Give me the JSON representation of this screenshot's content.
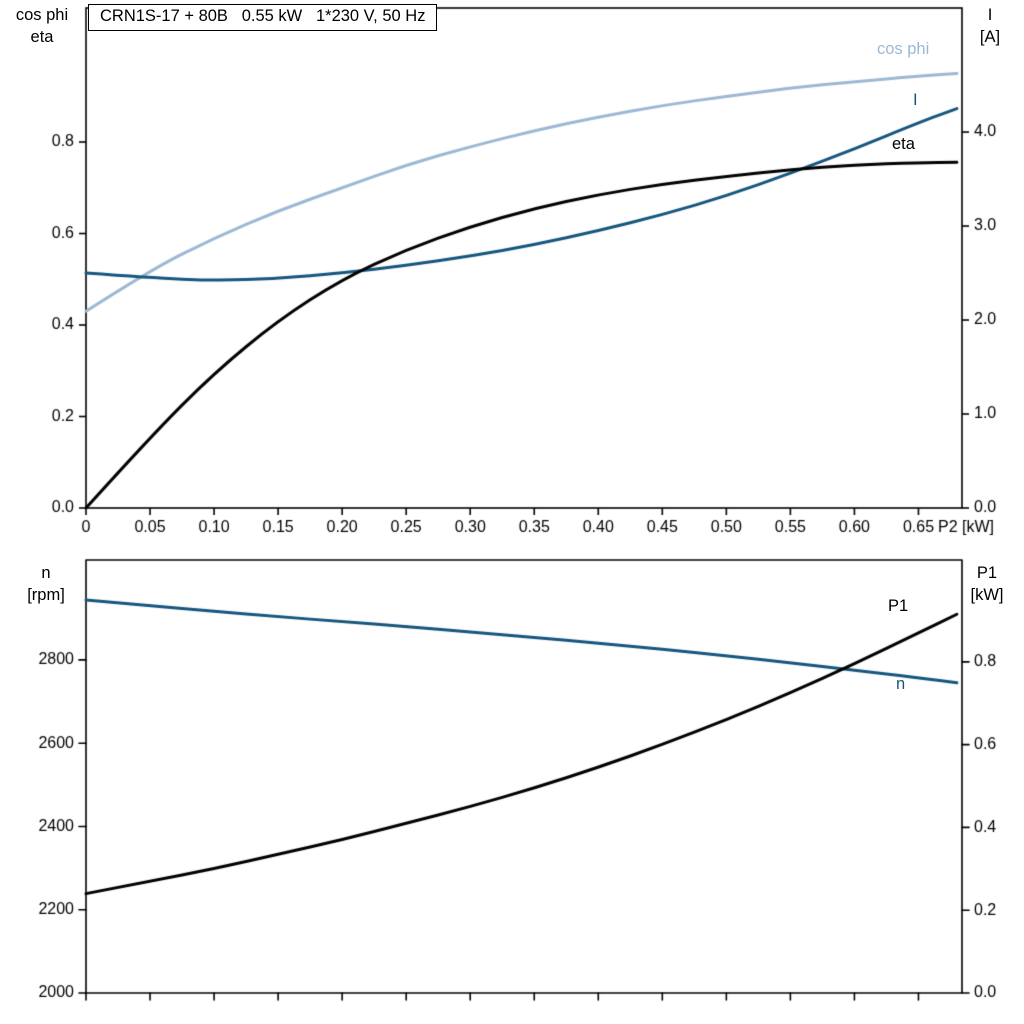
{
  "title_box": "CRN1S-17 + 80B   0.55 kW   1*230 V, 50 Hz",
  "axes_titles": {
    "top_left": [
      "cos phi",
      "eta"
    ],
    "top_right": [
      "I",
      "[A]"
    ],
    "bottom_left": [
      "n",
      "[rpm]"
    ],
    "bottom_right": [
      "P1",
      "[kW]"
    ],
    "x_end": "P2 [kW]"
  },
  "colors": {
    "dark_blue": "#15567d",
    "light_blue": "#9cb8d4",
    "black": "#000000"
  },
  "chart_data": [
    {
      "type": "line",
      "title": "CRN1S-17 + 80B   0.55 kW   1*230 V, 50 Hz",
      "xlabel": "P2 [kW]",
      "x": [
        0,
        0.05,
        0.1,
        0.15,
        0.2,
        0.25,
        0.3,
        0.35,
        0.4,
        0.45,
        0.5,
        0.55,
        0.6,
        0.65,
        0.68
      ],
      "xlim": [
        0,
        0.684
      ],
      "x_ticks": [
        0,
        0.05,
        0.1,
        0.15,
        0.2,
        0.25,
        0.3,
        0.35,
        0.4,
        0.45,
        0.5,
        0.55,
        0.6,
        0.65
      ],
      "x_tick_labels": [
        "0",
        "0.05",
        "0.10",
        "0.15",
        "0.20",
        "0.25",
        "0.30",
        "0.35",
        "0.40",
        "0.45",
        "0.50",
        "0.55",
        "0.60",
        "0.65"
      ],
      "grid": false,
      "legend_position": "curve-end-labels",
      "axes": {
        "left": {
          "title": [
            "cos phi",
            "eta"
          ],
          "lim": [
            0,
            1.093
          ],
          "ticks": [
            0,
            0.2,
            0.4,
            0.6,
            0.8
          ],
          "tick_labels": [
            "0.0",
            "0.2",
            "0.4",
            "0.6",
            "0.8"
          ]
        },
        "right": {
          "title": [
            "I",
            "[A]"
          ],
          "lim": [
            0,
            5.32
          ],
          "ticks": [
            0,
            1,
            2,
            3,
            4
          ],
          "tick_labels": [
            "0.0",
            "1.0",
            "2.0",
            "3.0",
            "4.0"
          ]
        }
      },
      "series": [
        {
          "name": "cos phi",
          "axis": "left",
          "color": "#9cb8d4",
          "values": [
            0.43,
            0.52,
            0.59,
            0.65,
            0.7,
            0.75,
            0.79,
            0.825,
            0.855,
            0.88,
            0.9,
            0.918,
            0.932,
            0.944,
            0.95
          ]
        },
        {
          "name": "I",
          "axis": "right",
          "color": "#15567d",
          "values": [
            2.5,
            2.45,
            2.42,
            2.44,
            2.5,
            2.58,
            2.68,
            2.8,
            2.95,
            3.12,
            3.32,
            3.56,
            3.82,
            4.1,
            4.25
          ]
        },
        {
          "name": "eta",
          "axis": "left",
          "color": "#000000",
          "values": [
            0,
            0.155,
            0.295,
            0.41,
            0.5,
            0.565,
            0.615,
            0.655,
            0.685,
            0.708,
            0.725,
            0.74,
            0.75,
            0.755,
            0.756
          ]
        }
      ]
    },
    {
      "type": "line",
      "title": "",
      "xlabel": "",
      "x": [
        0,
        0.05,
        0.1,
        0.15,
        0.2,
        0.25,
        0.3,
        0.35,
        0.4,
        0.45,
        0.5,
        0.55,
        0.6,
        0.65,
        0.68
      ],
      "xlim": [
        0,
        0.684
      ],
      "x_ticks": [
        0,
        0.05,
        0.1,
        0.15,
        0.2,
        0.25,
        0.3,
        0.35,
        0.4,
        0.45,
        0.5,
        0.55,
        0.6,
        0.65
      ],
      "x_tick_labels": [],
      "grid": false,
      "legend_position": "curve-end-labels",
      "axes": {
        "left": {
          "title": [
            "n",
            "[rpm]"
          ],
          "lim": [
            2000,
            3040
          ],
          "ticks": [
            2000,
            2200,
            2400,
            2600,
            2800
          ],
          "tick_labels": [
            "2000",
            "2200",
            "2400",
            "2600",
            "2800"
          ]
        },
        "right": {
          "title": [
            "P1",
            "[kW]"
          ],
          "lim": [
            0,
            1.046
          ],
          "ticks": [
            0,
            0.2,
            0.4,
            0.6,
            0.8
          ],
          "tick_labels": [
            "0.0",
            "0.2",
            "0.4",
            "0.6",
            "0.8"
          ]
        }
      },
      "series": [
        {
          "name": "n",
          "axis": "left",
          "color": "#15567d",
          "values": [
            2944,
            2930,
            2917,
            2904,
            2892,
            2880,
            2867,
            2854,
            2840,
            2826,
            2810,
            2793,
            2775,
            2757,
            2745
          ]
        },
        {
          "name": "P1",
          "axis": "right",
          "color": "#000000",
          "values": [
            0.24,
            0.27,
            0.3,
            0.335,
            0.37,
            0.41,
            0.45,
            0.495,
            0.545,
            0.6,
            0.66,
            0.725,
            0.795,
            0.87,
            0.915
          ]
        }
      ]
    }
  ]
}
